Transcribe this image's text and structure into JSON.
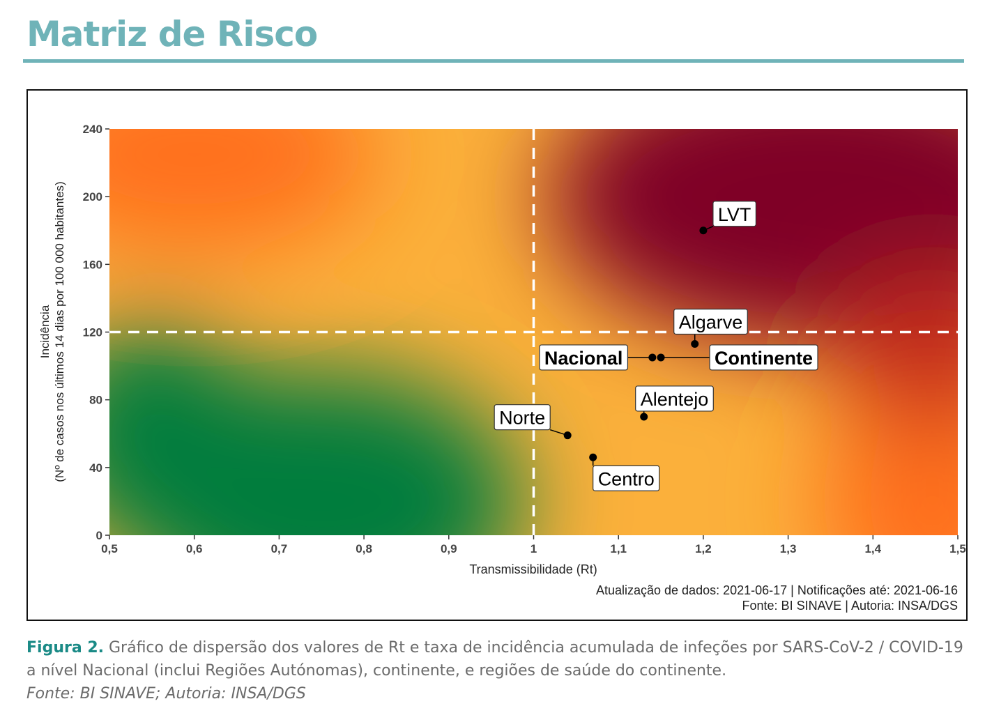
{
  "header": {
    "title": "Matriz de Risco"
  },
  "chart_data": {
    "type": "scatter",
    "xlabel": "Transmissibilidade (Rt)",
    "ylabel_line1": "Incidência",
    "ylabel_line2": "(Nº de casos nos últimos 14 dias por 100 000 habitantes)",
    "xlim": [
      0.5,
      1.5
    ],
    "ylim": [
      0,
      240
    ],
    "x_ticks": [
      {
        "value": 0.5,
        "label": "0,5"
      },
      {
        "value": 0.6,
        "label": "0,6"
      },
      {
        "value": 0.7,
        "label": "0,7"
      },
      {
        "value": 0.8,
        "label": "0,8"
      },
      {
        "value": 0.9,
        "label": "0,9"
      },
      {
        "value": 1.0,
        "label": "1"
      },
      {
        "value": 1.1,
        "label": "1,1"
      },
      {
        "value": 1.2,
        "label": "1,2"
      },
      {
        "value": 1.3,
        "label": "1,3"
      },
      {
        "value": 1.4,
        "label": "1,4"
      },
      {
        "value": 1.5,
        "label": "1,5"
      }
    ],
    "y_ticks": [
      {
        "value": 0,
        "label": "0"
      },
      {
        "value": 40,
        "label": "40"
      },
      {
        "value": 80,
        "label": "80"
      },
      {
        "value": 120,
        "label": "120"
      },
      {
        "value": 160,
        "label": "160"
      },
      {
        "value": 200,
        "label": "200"
      },
      {
        "value": 240,
        "label": "240"
      }
    ],
    "reference_lines": {
      "x": 1.0,
      "y": 120
    },
    "points": [
      {
        "name": "LVT",
        "x": 1.2,
        "y": 180,
        "bold": false
      },
      {
        "name": "Algarve",
        "x": 1.19,
        "y": 113,
        "bold": false
      },
      {
        "name": "Nacional",
        "x": 1.14,
        "y": 105,
        "bold": true
      },
      {
        "name": "Continente",
        "x": 1.15,
        "y": 105,
        "bold": true
      },
      {
        "name": "Alentejo",
        "x": 1.13,
        "y": 70,
        "bold": false
      },
      {
        "name": "Norte",
        "x": 1.04,
        "y": 59,
        "bold": false
      },
      {
        "name": "Centro",
        "x": 1.07,
        "y": 46,
        "bold": false
      }
    ],
    "notes": [
      "Atualização de dados: 2021-06-17 | Notificações até: 2021-06-16",
      "Fonte: BI SINAVE | Autoria: INSA/DGS"
    ],
    "colors": {
      "low_risk": "#007d3c",
      "medium_risk": "#fbb03b",
      "high_risk": "#ff6f1e",
      "very_high_risk": "#7f0026"
    }
  },
  "caption": {
    "label": "Figura 2.",
    "text": " Gráfico de dispersão dos valores de Rt e taxa de incidência acumulada de infeções por SARS-CoV-2 / COVID-19 a nível Nacional (inclui Regiões Autónomas), continente, e regiões de saúde do continente.",
    "source": "Fonte: BI SINAVE; Autoria: INSA/DGS"
  }
}
